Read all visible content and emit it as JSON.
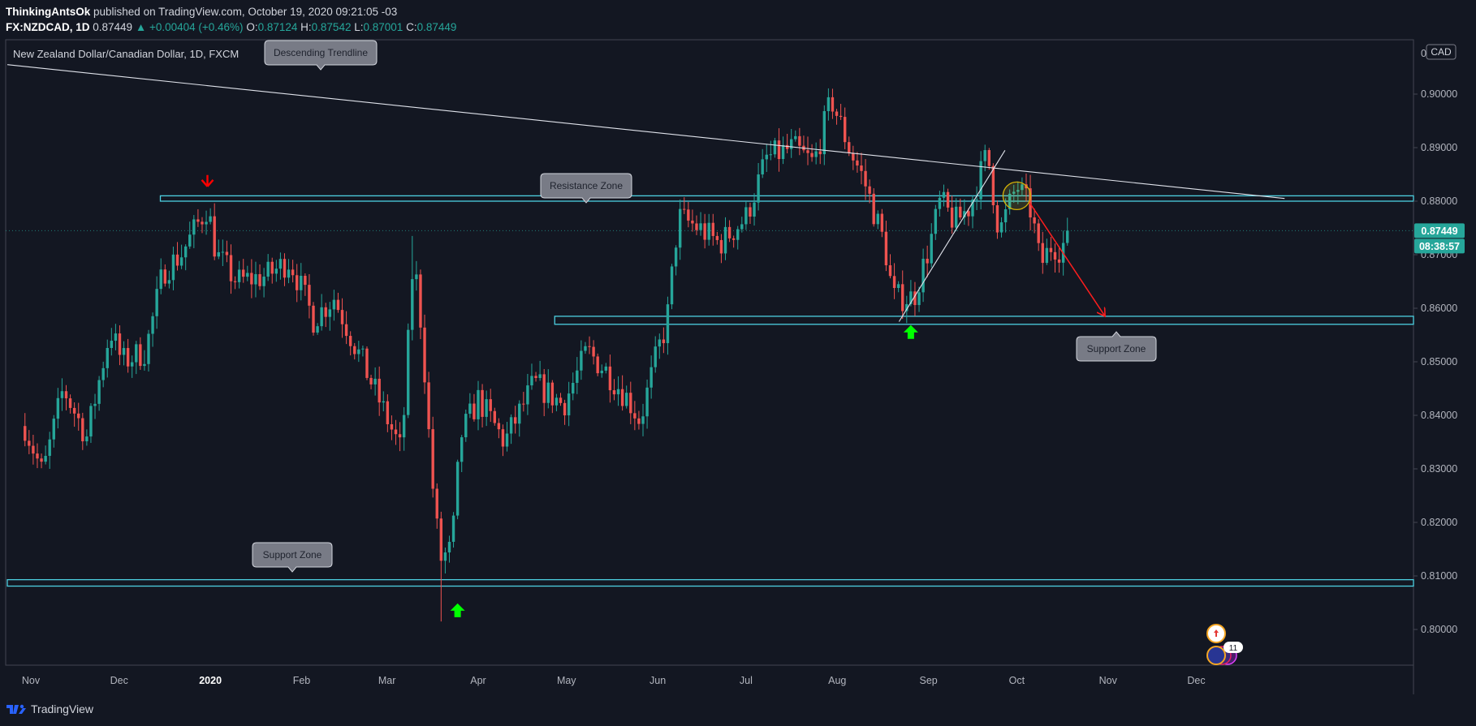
{
  "header": {
    "author": "ThinkingAntsOk",
    "published_text": "published on TradingView.com, October 19, 2020 09:21:05 -03",
    "symbol_info": "FX:NZDCAD, 1D",
    "last": "0.87449",
    "change": "▲ +0.00404 (+0.46%)",
    "o_label": "O:",
    "o_value": "0.87124",
    "h_label": "H:",
    "h_value": "0.87542",
    "l_label": "L:",
    "l_value": "0.87001",
    "c_label": "C:",
    "c_value": "0.87449"
  },
  "chart_data": {
    "type": "candlestick",
    "title": "New Zealand Dollar/Canadian Dollar, 1D, FXCM",
    "currency_badge": "CAD",
    "y_ticks": [
      "0.80000",
      "0.81000",
      "0.82000",
      "0.83000",
      "0.84000",
      "0.85000",
      "0.86000",
      "0.87000",
      "0.88000",
      "0.89000",
      "0.90000"
    ],
    "ylim": [
      0.7945,
      0.9065
    ],
    "x_ticks": [
      "Nov",
      "Dec",
      "2020",
      "Feb",
      "Mar",
      "Apr",
      "May",
      "Jun",
      "Jul",
      "Aug",
      "Sep",
      "Oct",
      "Nov",
      "Dec"
    ],
    "last_price": "0.87449",
    "countdown": "08:38:57",
    "grid": false,
    "colors": {
      "up": "#26a69a",
      "down": "#ef5350",
      "zone": "#4dd0e1",
      "arrow_up": "#00ff00",
      "arrow_down": "#ff0000",
      "background": "#131722"
    },
    "path_anchors": [
      {
        "t": "2019-10-30",
        "p": 0.838
      },
      {
        "t": "2019-11-05",
        "p": 0.829
      },
      {
        "t": "2019-11-12",
        "p": 0.845
      },
      {
        "t": "2019-11-20",
        "p": 0.836
      },
      {
        "t": "2019-11-28",
        "p": 0.856
      },
      {
        "t": "2019-12-02",
        "p": 0.85
      },
      {
        "t": "2019-12-10",
        "p": 0.852
      },
      {
        "t": "2019-12-16",
        "p": 0.867
      },
      {
        "t": "2019-12-22",
        "p": 0.87
      },
      {
        "t": "2019-12-27",
        "p": 0.875
      },
      {
        "t": "2019-12-31",
        "p": 0.879
      },
      {
        "t": "2020-01-03",
        "p": 0.87
      },
      {
        "t": "2020-01-10",
        "p": 0.865
      },
      {
        "t": "2020-01-20",
        "p": 0.866
      },
      {
        "t": "2020-01-28",
        "p": 0.869
      },
      {
        "t": "2020-02-05",
        "p": 0.858
      },
      {
        "t": "2020-02-12",
        "p": 0.862
      },
      {
        "t": "2020-02-20",
        "p": 0.852
      },
      {
        "t": "2020-02-28",
        "p": 0.842
      },
      {
        "t": "2020-03-06",
        "p": 0.833
      },
      {
        "t": "2020-03-10",
        "p": 0.87
      },
      {
        "t": "2020-03-13",
        "p": 0.855
      },
      {
        "t": "2020-03-16",
        "p": 0.83
      },
      {
        "t": "2020-03-19",
        "p": 0.813
      },
      {
        "t": "2020-03-23",
        "p": 0.815
      },
      {
        "t": "2020-03-26",
        "p": 0.836
      },
      {
        "t": "2020-04-01",
        "p": 0.843
      },
      {
        "t": "2020-04-10",
        "p": 0.835
      },
      {
        "t": "2020-04-20",
        "p": 0.846
      },
      {
        "t": "2020-04-30",
        "p": 0.842
      },
      {
        "t": "2020-05-08",
        "p": 0.852
      },
      {
        "t": "2020-05-15",
        "p": 0.848
      },
      {
        "t": "2020-05-22",
        "p": 0.843
      },
      {
        "t": "2020-05-26",
        "p": 0.839
      },
      {
        "t": "2020-06-01",
        "p": 0.852
      },
      {
        "t": "2020-06-04",
        "p": 0.857
      },
      {
        "t": "2020-06-08",
        "p": 0.877
      },
      {
        "t": "2020-06-15",
        "p": 0.875
      },
      {
        "t": "2020-06-22",
        "p": 0.872
      },
      {
        "t": "2020-07-01",
        "p": 0.877
      },
      {
        "t": "2020-07-08",
        "p": 0.888
      },
      {
        "t": "2020-07-17",
        "p": 0.89
      },
      {
        "t": "2020-07-24",
        "p": 0.887
      },
      {
        "t": "2020-07-30",
        "p": 0.899
      },
      {
        "t": "2020-08-05",
        "p": 0.89
      },
      {
        "t": "2020-08-10",
        "p": 0.884
      },
      {
        "t": "2020-08-17",
        "p": 0.872
      },
      {
        "t": "2020-08-20",
        "p": 0.862
      },
      {
        "t": "2020-08-27",
        "p": 0.862
      },
      {
        "t": "2020-09-01",
        "p": 0.871
      },
      {
        "t": "2020-09-05",
        "p": 0.88
      },
      {
        "t": "2020-09-10",
        "p": 0.876
      },
      {
        "t": "2020-09-15",
        "p": 0.879
      },
      {
        "t": "2020-09-21",
        "p": 0.889
      },
      {
        "t": "2020-09-25",
        "p": 0.874
      },
      {
        "t": "2020-10-01",
        "p": 0.883
      },
      {
        "t": "2020-10-06",
        "p": 0.878
      },
      {
        "t": "2020-10-09",
        "p": 0.868
      },
      {
        "t": "2020-10-13",
        "p": 0.872
      },
      {
        "t": "2020-10-16",
        "p": 0.871
      },
      {
        "t": "2020-10-19",
        "p": 0.8745
      }
    ],
    "drawings": {
      "descending_trendline": {
        "label": "Descending Trendline",
        "from": {
          "t": "2019-10-24",
          "p": 0.9055
        },
        "to": {
          "t": "2020-12-31",
          "p": 0.8805
        }
      },
      "resistance_zone": {
        "label": "Resistance Zone",
        "from_t": "2019-12-15",
        "top": 0.881,
        "bottom": 0.88
      },
      "support_zone_upper": {
        "label": "Support Zone",
        "from_t": "2020-04-27",
        "top": 0.8585,
        "bottom": 0.857
      },
      "support_zone_lower": {
        "label": "Support Zone",
        "from_t": "2019-10-24",
        "top": 0.8093,
        "bottom": 0.8081
      },
      "ascending_trendline": {
        "from": {
          "t": "2020-08-22",
          "p": 0.8575
        },
        "to": {
          "t": "2020-09-27",
          "p": 0.8895
        }
      },
      "projection_arrow": {
        "from": {
          "t": "2020-10-05",
          "p": 0.88
        },
        "to": {
          "t": "2020-10-31",
          "p": 0.8585
        }
      },
      "circle": {
        "t": "2020-10-01",
        "p": 0.881
      },
      "down_arrow": {
        "t": "2019-12-31",
        "p": 0.882
      },
      "up_arrows": [
        {
          "t": "2020-03-25",
          "p": 0.8035
        },
        {
          "t": "2020-08-26",
          "p": 0.8555
        }
      ]
    },
    "events": [
      {
        "icon": "canada-flag-icon"
      },
      {
        "icon": "nz-flag-icon",
        "count": "11"
      }
    ]
  },
  "footer": {
    "brand": "TradingView"
  }
}
